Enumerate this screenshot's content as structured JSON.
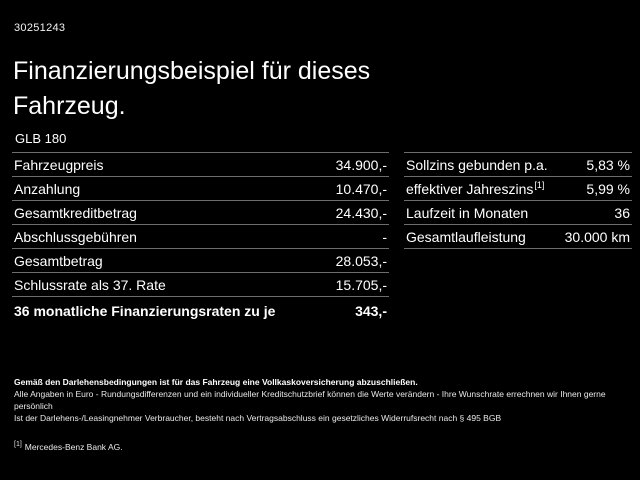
{
  "page": {
    "doc_id": "30251243",
    "title": "Finanzierungsbeispiel für dieses Fahrzeug.",
    "model": "GLB 180"
  },
  "finance_table": {
    "rows": [
      {
        "label": "Fahrzeugpreis",
        "value": "34.900,-"
      },
      {
        "label": "Anzahlung",
        "value": "10.470,-"
      },
      {
        "label": "Gesamtkreditbetrag",
        "value": "24.430,-"
      },
      {
        "label": "Abschlussgebühren",
        "value": "-"
      },
      {
        "label": "Gesamtbetrag",
        "value": "28.053,-"
      },
      {
        "label": "Schlussrate als 37. Rate",
        "value": "15.705,-"
      },
      {
        "label": "36 monatliche Finanzierungsraten zu je",
        "value": "343,-"
      }
    ]
  },
  "conditions_table": {
    "rows": [
      {
        "label": "Sollzins gebunden p.a.",
        "value": "5,83 %"
      },
      {
        "label": "effektiver Jahreszins",
        "sup": "[1]",
        "value": "5,99 %"
      },
      {
        "label": "Laufzeit in Monaten",
        "value": "36"
      },
      {
        "label": "Gesamtlaufleistung",
        "value": "30.000 km"
      }
    ]
  },
  "footnotes": {
    "line1": "Gemäß den Darlehensbedingungen ist für das Fahrzeug eine Vollkaskoversicherung abzuschließen.",
    "line2": "Alle Angaben in Euro - Rundungsdifferenzen und ein individueller Kreditschutzbrief können die Werte verändern - Ihre Wunschrate errechnen wir Ihnen gerne persönlich",
    "line3": "Ist der Darlehens-/Leasingnehmer Verbraucher, besteht nach Vertragsabschluss ein gesetzliches Widerrufsrecht nach § 495 BGB",
    "ref_marker": "[1]",
    "ref_text": "Mercedes-Benz Bank AG."
  }
}
